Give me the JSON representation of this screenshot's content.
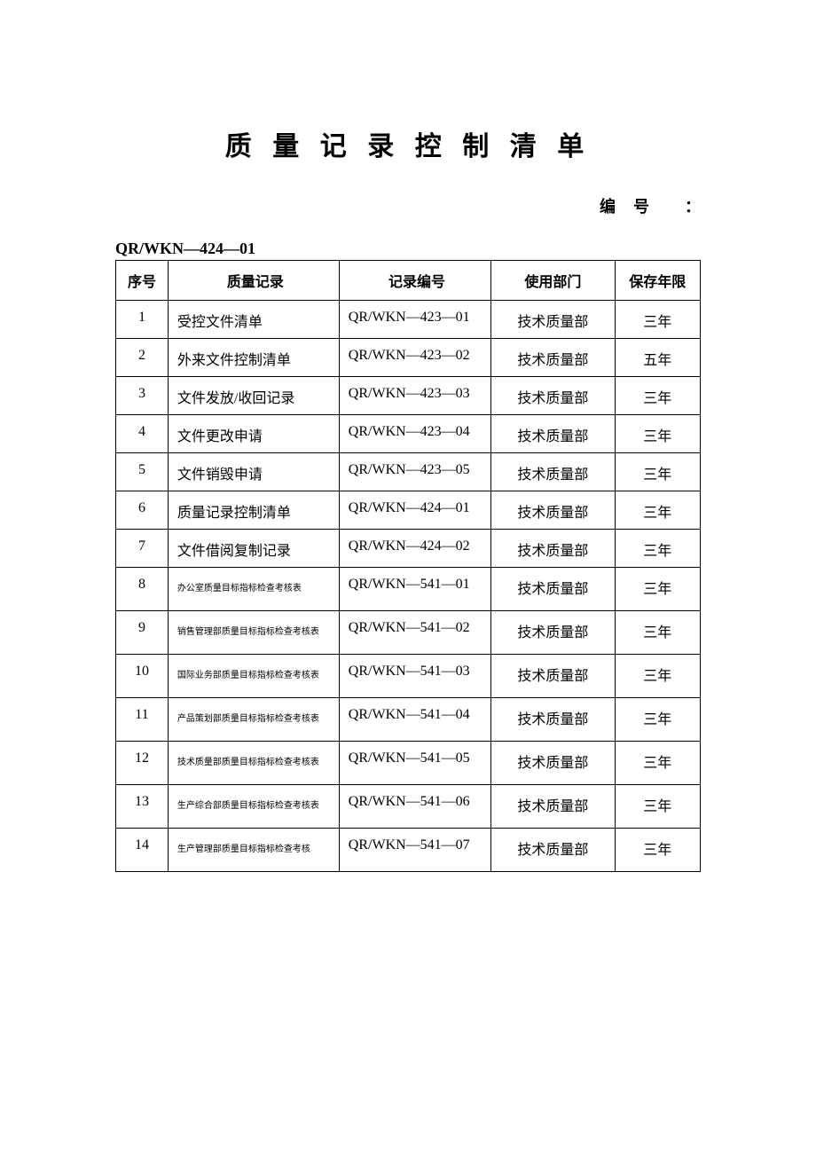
{
  "title": "质 量 记 录 控 制 清 单",
  "doc_number_label": "编号",
  "doc_number_colon": "：",
  "doc_number_value": "QR/WKN—424—01",
  "table": {
    "headers": {
      "seq": "序号",
      "record": "质量记录",
      "code": "记录编号",
      "dept": "使用部门",
      "retain": "保存年限"
    },
    "rows": [
      {
        "seq": "1",
        "record": "受控文件清单",
        "code": "QR/WKN—423—01",
        "dept": "技术质量部",
        "retain": "三年",
        "small": false
      },
      {
        "seq": "2",
        "record": "外来文件控制清单",
        "code": "QR/WKN—423—02",
        "dept": "技术质量部",
        "retain": "五年",
        "small": false
      },
      {
        "seq": "3",
        "record": "文件发放/收回记录",
        "code": "QR/WKN—423—03",
        "dept": "技术质量部",
        "retain": "三年",
        "small": false
      },
      {
        "seq": "4",
        "record": "文件更改申请",
        "code": "QR/WKN—423—04",
        "dept": "技术质量部",
        "retain": "三年",
        "small": false
      },
      {
        "seq": "5",
        "record": "文件销毁申请",
        "code": "QR/WKN—423—05",
        "dept": "技术质量部",
        "retain": "三年",
        "small": false
      },
      {
        "seq": "6",
        "record": "质量记录控制清单",
        "code": "QR/WKN—424—01",
        "dept": "技术质量部",
        "retain": "三年",
        "small": false
      },
      {
        "seq": "7",
        "record": "文件借阅复制记录",
        "code": "QR/WKN—424—02",
        "dept": "技术质量部",
        "retain": "三年",
        "small": false
      },
      {
        "seq": "8",
        "record": "办公室质量目标指标检查考核表",
        "code": "QR/WKN—541—01",
        "dept": "技术质量部",
        "retain": "三年",
        "small": true
      },
      {
        "seq": "9",
        "record": "销售管理部质量目标指标检查考核表",
        "code": "QR/WKN—541—02",
        "dept": "技术质量部",
        "retain": "三年",
        "small": true
      },
      {
        "seq": "10",
        "record": "国际业务部质量目标指标检查考核表",
        "code": "QR/WKN—541—03",
        "dept": "技术质量部",
        "retain": "三年",
        "small": true
      },
      {
        "seq": "11",
        "record": "产品策划部质量目标指标检查考核表",
        "code": "QR/WKN—541—04",
        "dept": "技术质量部",
        "retain": "三年",
        "small": true
      },
      {
        "seq": "12",
        "record": "技术质量部质量目标指标检查考核表",
        "code": "QR/WKN—541—05",
        "dept": "技术质量部",
        "retain": "三年",
        "small": true
      },
      {
        "seq": "13",
        "record": "生产综合部质量目标指标检查考核表",
        "code": "QR/WKN—541—06",
        "dept": "技术质量部",
        "retain": "三年",
        "small": true
      },
      {
        "seq": "14",
        "record": "生产管理部质量目标指标检查考核",
        "code": "QR/WKN—541—07",
        "dept": "技术质量部",
        "retain": "三年",
        "small": true
      }
    ]
  },
  "colors": {
    "text": "#000000",
    "border": "#000000",
    "background": "#ffffff"
  }
}
